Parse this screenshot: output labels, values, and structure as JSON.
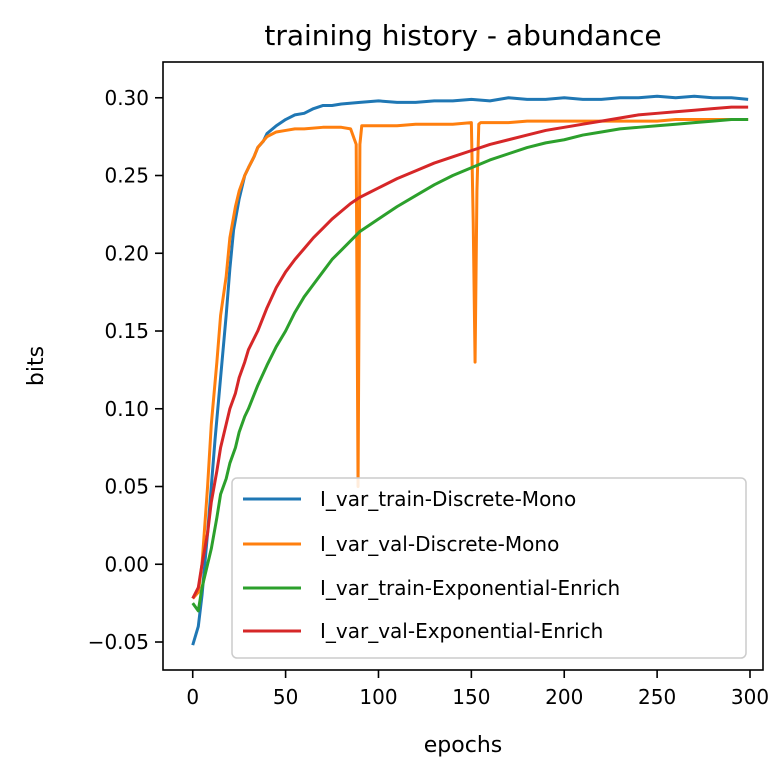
{
  "chart_data": {
    "type": "line",
    "title": "training history - abundance",
    "xlabel": "epochs",
    "ylabel": "bits",
    "xlim": [
      -16,
      307
    ],
    "ylim": [
      -0.068,
      0.323
    ],
    "xticks": [
      0,
      50,
      100,
      150,
      200,
      250,
      300
    ],
    "xtick_labels": [
      "0",
      "50",
      "100",
      "150",
      "200",
      "250",
      "300"
    ],
    "yticks": [
      -0.05,
      0.0,
      0.05,
      0.1,
      0.15,
      0.2,
      0.25,
      0.3
    ],
    "ytick_labels": [
      "−0.05",
      "0.00",
      "0.05",
      "0.10",
      "0.15",
      "0.20",
      "0.25",
      "0.30"
    ],
    "grid": false,
    "legend_position": "lower-right",
    "series": [
      {
        "name": "I_var_train-Discrete-Mono",
        "color": "#1f77b4",
        "x": [
          0,
          3,
          5,
          8,
          10,
          12,
          15,
          18,
          20,
          22,
          25,
          28,
          30,
          33,
          35,
          38,
          40,
          45,
          50,
          55,
          60,
          65,
          70,
          75,
          80,
          90,
          100,
          110,
          120,
          130,
          140,
          150,
          160,
          170,
          180,
          190,
          200,
          210,
          220,
          230,
          240,
          250,
          260,
          270,
          280,
          290,
          299
        ],
        "y": [
          -0.052,
          -0.04,
          -0.02,
          0.02,
          0.05,
          0.08,
          0.12,
          0.16,
          0.19,
          0.215,
          0.235,
          0.25,
          0.255,
          0.262,
          0.268,
          0.272,
          0.277,
          0.282,
          0.286,
          0.289,
          0.29,
          0.293,
          0.295,
          0.295,
          0.296,
          0.297,
          0.298,
          0.297,
          0.297,
          0.298,
          0.298,
          0.299,
          0.298,
          0.3,
          0.299,
          0.299,
          0.3,
          0.299,
          0.299,
          0.3,
          0.3,
          0.301,
          0.3,
          0.301,
          0.3,
          0.3,
          0.299
        ]
      },
      {
        "name": "I_var_val-Discrete-Mono",
        "color": "#ff7f0e",
        "x": [
          0,
          3,
          5,
          8,
          10,
          13,
          15,
          18,
          20,
          23,
          25,
          28,
          30,
          33,
          35,
          40,
          45,
          50,
          55,
          60,
          70,
          80,
          85,
          88,
          89,
          90,
          91,
          95,
          100,
          110,
          120,
          130,
          140,
          150,
          151,
          152,
          153,
          154,
          155,
          160,
          170,
          180,
          190,
          200,
          210,
          220,
          230,
          240,
          250,
          260,
          270,
          280,
          290,
          299
        ],
        "y": [
          -0.022,
          -0.018,
          0.0,
          0.05,
          0.09,
          0.13,
          0.16,
          0.185,
          0.21,
          0.23,
          0.24,
          0.25,
          0.255,
          0.262,
          0.268,
          0.275,
          0.278,
          0.279,
          0.28,
          0.28,
          0.281,
          0.281,
          0.28,
          0.27,
          0.05,
          0.27,
          0.282,
          0.282,
          0.282,
          0.282,
          0.283,
          0.283,
          0.283,
          0.284,
          0.22,
          0.13,
          0.24,
          0.283,
          0.284,
          0.284,
          0.284,
          0.285,
          0.285,
          0.285,
          0.285,
          0.285,
          0.285,
          0.285,
          0.285,
          0.286,
          0.286,
          0.286,
          0.286,
          0.286
        ]
      },
      {
        "name": "I_var_train-Exponential-Enrich",
        "color": "#2ca02c",
        "x": [
          0,
          3,
          5,
          8,
          10,
          13,
          15,
          18,
          20,
          23,
          25,
          28,
          30,
          35,
          40,
          45,
          50,
          55,
          60,
          65,
          70,
          75,
          80,
          85,
          90,
          95,
          100,
          110,
          120,
          130,
          140,
          150,
          160,
          170,
          180,
          190,
          200,
          210,
          220,
          230,
          240,
          250,
          260,
          270,
          280,
          290,
          299
        ],
        "y": [
          -0.025,
          -0.03,
          -0.015,
          0.0,
          0.01,
          0.03,
          0.045,
          0.055,
          0.065,
          0.075,
          0.085,
          0.095,
          0.1,
          0.115,
          0.128,
          0.14,
          0.15,
          0.162,
          0.172,
          0.18,
          0.188,
          0.196,
          0.202,
          0.208,
          0.214,
          0.218,
          0.222,
          0.23,
          0.237,
          0.244,
          0.25,
          0.255,
          0.26,
          0.264,
          0.268,
          0.271,
          0.273,
          0.276,
          0.278,
          0.28,
          0.281,
          0.282,
          0.283,
          0.284,
          0.285,
          0.286,
          0.286
        ]
      },
      {
        "name": "I_var_val-Exponential-Enrich",
        "color": "#d62728",
        "x": [
          0,
          3,
          5,
          8,
          10,
          13,
          15,
          18,
          20,
          23,
          25,
          28,
          30,
          35,
          40,
          45,
          50,
          55,
          60,
          65,
          70,
          75,
          80,
          85,
          90,
          95,
          100,
          110,
          120,
          130,
          140,
          150,
          160,
          170,
          180,
          190,
          200,
          210,
          220,
          230,
          240,
          250,
          260,
          270,
          280,
          290,
          299
        ],
        "y": [
          -0.022,
          -0.015,
          0.0,
          0.02,
          0.04,
          0.06,
          0.075,
          0.09,
          0.1,
          0.11,
          0.12,
          0.13,
          0.138,
          0.15,
          0.165,
          0.178,
          0.188,
          0.196,
          0.203,
          0.21,
          0.216,
          0.222,
          0.227,
          0.232,
          0.236,
          0.239,
          0.242,
          0.248,
          0.253,
          0.258,
          0.262,
          0.266,
          0.27,
          0.273,
          0.276,
          0.279,
          0.281,
          0.283,
          0.285,
          0.287,
          0.289,
          0.29,
          0.291,
          0.292,
          0.293,
          0.294,
          0.294
        ]
      }
    ]
  }
}
